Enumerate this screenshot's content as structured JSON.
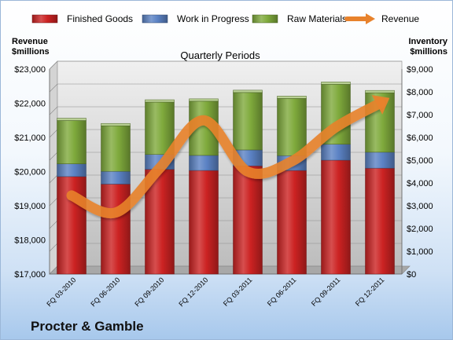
{
  "chart_data": {
    "type": "bar",
    "stacked": true,
    "subtitle": "Quarterly Periods",
    "company": "Procter & Gamble",
    "left_axis_title": [
      "Revenue",
      "$millions"
    ],
    "right_axis_title": [
      "Inventory",
      "$millions"
    ],
    "categories": [
      "FQ 03-2010",
      "FQ 06-2010",
      "FQ 09-2010",
      "FQ 12-2010",
      "FQ 03-2011",
      "FQ 06-2011",
      "FQ 09-2011",
      "FQ 12-2011"
    ],
    "series": [
      {
        "name": "Finished Goods",
        "axis": "right",
        "color": "#cc2222",
        "values": [
          4280,
          3950,
          4600,
          4550,
          4750,
          4550,
          5000,
          4650
        ]
      },
      {
        "name": "Work in Progress",
        "axis": "right",
        "color": "#5b82c4",
        "values": [
          560,
          560,
          650,
          660,
          700,
          650,
          700,
          700
        ]
      },
      {
        "name": "Raw Materials",
        "axis": "right",
        "color": "#7faa3c",
        "values": [
          1900,
          2000,
          2300,
          2380,
          2520,
          2510,
          2630,
          2610
        ]
      },
      {
        "name": "Revenue",
        "axis": "left",
        "type": "line",
        "color": "#e8822c",
        "values": [
          19300,
          18800,
          20100,
          21500,
          20000,
          20300,
          21300,
          22000
        ]
      }
    ],
    "left_axis": {
      "min": 17000,
      "max": 23000,
      "step": 1000,
      "format": "$"
    },
    "right_axis": {
      "min": 0,
      "max": 9000,
      "step": 1000,
      "format": "$"
    },
    "left_ticks": [
      "$17,000",
      "$18,000",
      "$19,000",
      "$20,000",
      "$21,000",
      "$22,000",
      "$23,000"
    ],
    "right_ticks": [
      "$0",
      "$1,000",
      "$2,000",
      "$3,000",
      "$4,000",
      "$5,000",
      "$6,000",
      "$7,000",
      "$8,000",
      "$9,000"
    ],
    "grid": true,
    "legend": "top"
  }
}
